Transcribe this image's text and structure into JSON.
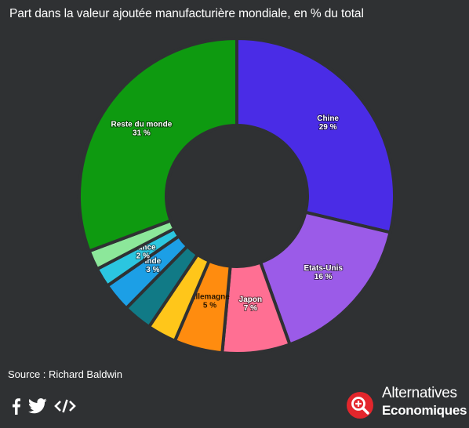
{
  "title": "Part dans la valeur ajoutée manufacturière mondiale, en % du total",
  "source": "Source : Richard Baldwin",
  "logo": {
    "line1": "Alternatives",
    "line2": "Economiques"
  },
  "share": {
    "icons": [
      "facebook-icon",
      "twitter-icon",
      "embed-code-icon"
    ]
  },
  "colors": {
    "background": "#2f3133",
    "logo_red": "#e3262c"
  },
  "chart_data": {
    "type": "pie",
    "donut": true,
    "title": "Part dans la valeur ajoutée manufacturière mondiale, en % du total",
    "slices": [
      {
        "name": "Chine",
        "value": 29,
        "label": "29 %",
        "color": "#4a2ce6",
        "show_label": true
      },
      {
        "name": "Etats-Unis",
        "value": 16,
        "label": "16 %",
        "color": "#9b5be8",
        "show_label": true
      },
      {
        "name": "Japon",
        "value": 7,
        "label": "7 %",
        "color": "#ff6f93",
        "show_label": true
      },
      {
        "name": "Allemagne",
        "value": 5,
        "label": "5 %",
        "color": "#ff8c0f",
        "show_label": true,
        "dark_text": true
      },
      {
        "name": "",
        "value": 3,
        "label": "",
        "color": "#ffc61a",
        "show_label": false
      },
      {
        "name": "",
        "value": 3,
        "label": "",
        "color": "#117a86",
        "show_label": false
      },
      {
        "name": "Inde",
        "value": 3,
        "label": "3 %",
        "color": "#1c9fe6",
        "show_label": true
      },
      {
        "name": "France",
        "value": 2,
        "label": "2 %",
        "color": "#2bc6e0",
        "show_label": true
      },
      {
        "name": "",
        "value": 2,
        "label": "",
        "color": "#8ce79a",
        "show_label": false
      },
      {
        "name": "Reste du monde",
        "value": 31,
        "label": "31 %",
        "color": "#0e9a10",
        "show_label": true
      }
    ]
  }
}
